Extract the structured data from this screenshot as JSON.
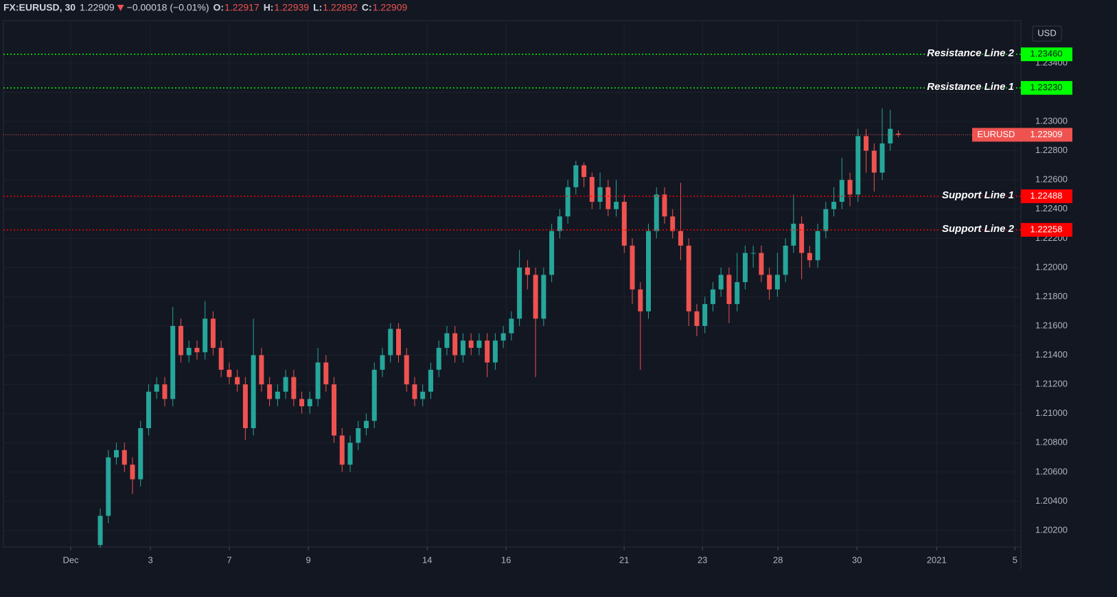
{
  "chart_data": {
    "type": "candlestick",
    "header": {
      "symbol": "FX:EURUSD, 30",
      "change": "−0.00018 (−0.01%)",
      "ohlc_labels": [
        "O:",
        "H:",
        "L:",
        "C:"
      ]
    },
    "currency": "USD",
    "symbol_tag": "EURUSD",
    "up_color": "#26a69a",
    "down_color": "#ef5350",
    "grid": true,
    "xlim": [
      -12.01,
      114.2
    ],
    "xticks": [
      {
        "value": -3.66,
        "label": "Dec"
      },
      {
        "value": 6.22,
        "label": "3"
      },
      {
        "value": 16.01,
        "label": "7"
      },
      {
        "value": 25.81,
        "label": "9"
      },
      {
        "value": 40.55,
        "label": "14"
      },
      {
        "value": 50.34,
        "label": "16"
      },
      {
        "value": 64.99,
        "label": "21"
      },
      {
        "value": 74.7,
        "label": "23"
      },
      {
        "value": 84.07,
        "label": "28"
      },
      {
        "value": 93.87,
        "label": "30"
      },
      {
        "value": 103.75,
        "label": "2021"
      },
      {
        "value": 113.46,
        "label": "5"
      }
    ],
    "ylim": [
      1.20087,
      1.23691
    ],
    "yticks": [
      {
        "value": 1.202,
        "label": "1.20200"
      },
      {
        "value": 1.204,
        "label": "1.20400"
      },
      {
        "value": 1.206,
        "label": "1.20600"
      },
      {
        "value": 1.208,
        "label": "1.20800"
      },
      {
        "value": 1.21,
        "label": "1.21000"
      },
      {
        "value": 1.212,
        "label": "1.21200"
      },
      {
        "value": 1.214,
        "label": "1.21400"
      },
      {
        "value": 1.216,
        "label": "1.21600"
      },
      {
        "value": 1.218,
        "label": "1.21800"
      },
      {
        "value": 1.22,
        "label": "1.22000"
      },
      {
        "value": 1.222,
        "label": "1.22200"
      },
      {
        "value": 1.224,
        "label": "1.22400"
      },
      {
        "value": 1.226,
        "label": "1.22600"
      },
      {
        "value": 1.228,
        "label": "1.22800"
      },
      {
        "value": 1.23,
        "label": "1.23000"
      },
      {
        "value": 1.232,
        "label": "1.23200"
      },
      {
        "value": 1.234,
        "label": "1.23400"
      }
    ],
    "open": [
      1.201,
      1.203,
      1.207,
      1.2075,
      1.2065,
      1.2055,
      1.209,
      1.2115,
      1.212,
      1.211,
      1.216,
      1.214,
      1.2145,
      1.2142,
      1.2165,
      1.2145,
      1.213,
      1.2125,
      1.212,
      1.209,
      1.214,
      1.212,
      1.211,
      1.2115,
      1.2125,
      1.211,
      1.2105,
      1.211,
      1.2135,
      1.212,
      1.2085,
      1.2065,
      1.208,
      1.209,
      1.2095,
      1.213,
      1.214,
      1.2158,
      1.214,
      1.212,
      1.211,
      1.2115,
      1.213,
      1.2145,
      1.2155,
      1.214,
      1.215,
      1.2145,
      1.215,
      1.2135,
      1.215,
      1.2155,
      1.2165,
      1.22,
      1.2195,
      1.2165,
      1.2195,
      1.2225,
      1.2235,
      1.2255,
      1.227,
      1.2262,
      1.2245,
      1.2255,
      1.224,
      1.2245,
      1.2215,
      1.2185,
      1.217,
      1.2225,
      1.225,
      1.2235,
      1.2225,
      1.2215,
      1.217,
      1.216,
      1.2175,
      1.2185,
      1.2195,
      1.2175,
      1.219,
      1.221,
      1.221,
      1.2195,
      1.2185,
      1.2195,
      1.2215,
      1.223,
      1.221,
      1.2205,
      1.2225,
      1.224,
      1.2245,
      1.226,
      1.225,
      1.229,
      1.228,
      1.2265,
      1.2285,
      1.22917
    ],
    "high": [
      1.2035,
      1.2075,
      1.208,
      1.208,
      1.207,
      1.2095,
      1.212,
      1.2125,
      1.2125,
      1.2173,
      1.2165,
      1.215,
      1.215,
      1.2177,
      1.217,
      1.215,
      1.2135,
      1.213,
      1.2125,
      1.2165,
      1.2145,
      1.2125,
      1.212,
      1.213,
      1.213,
      1.2115,
      1.2115,
      1.2145,
      1.214,
      1.2125,
      1.209,
      1.2085,
      1.2095,
      1.21,
      1.2135,
      1.2145,
      1.2162,
      1.2162,
      1.2145,
      1.2125,
      1.212,
      1.2135,
      1.215,
      1.216,
      1.216,
      1.2155,
      1.2155,
      1.2155,
      1.2155,
      1.2155,
      1.216,
      1.217,
      1.2212,
      1.2205,
      1.22,
      1.22,
      1.223,
      1.224,
      1.226,
      1.2273,
      1.2272,
      1.2265,
      1.2265,
      1.226,
      1.226,
      1.225,
      1.222,
      1.219,
      1.223,
      1.2255,
      1.2255,
      1.224,
      1.2258,
      1.222,
      1.2175,
      1.218,
      1.219,
      1.22,
      1.22,
      1.221,
      1.2215,
      1.2215,
      1.2215,
      1.22,
      1.221,
      1.222,
      1.225,
      1.2235,
      1.2215,
      1.223,
      1.2245,
      1.2255,
      1.2275,
      1.2265,
      1.2295,
      1.2295,
      1.2285,
      1.2309,
      1.2308,
      1.22939
    ],
    "low": [
      1.2008,
      1.2025,
      1.2065,
      1.206,
      1.2045,
      1.205,
      1.2085,
      1.211,
      1.2105,
      1.2105,
      1.2135,
      1.2135,
      1.2137,
      1.2137,
      1.214,
      1.2125,
      1.212,
      1.2115,
      1.2082,
      1.2085,
      1.2115,
      1.2105,
      1.2105,
      1.211,
      1.2105,
      1.21,
      1.21,
      1.2105,
      1.2115,
      1.208,
      1.206,
      1.206,
      1.2075,
      1.2085,
      1.209,
      1.2125,
      1.2135,
      1.2135,
      1.2115,
      1.2105,
      1.2105,
      1.211,
      1.2125,
      1.214,
      1.2135,
      1.2135,
      1.214,
      1.214,
      1.2125,
      1.213,
      1.2145,
      1.215,
      1.216,
      1.2185,
      1.2125,
      1.216,
      1.219,
      1.222,
      1.223,
      1.225,
      1.2255,
      1.224,
      1.224,
      1.2235,
      1.2235,
      1.221,
      1.2175,
      1.213,
      1.2165,
      1.222,
      1.223,
      1.222,
      1.2205,
      1.216,
      1.2153,
      1.2155,
      1.217,
      1.218,
      1.2162,
      1.217,
      1.2185,
      1.22,
      1.219,
      1.2178,
      1.218,
      1.219,
      1.221,
      1.2192,
      1.22,
      1.22,
      1.222,
      1.2235,
      1.224,
      1.2242,
      1.2245,
      1.2265,
      1.2252,
      1.226,
      1.228,
      1.22892
    ],
    "close": [
      1.203,
      1.207,
      1.2075,
      1.2065,
      1.2055,
      1.209,
      1.2115,
      1.212,
      1.211,
      1.216,
      1.214,
      1.2145,
      1.2142,
      1.2165,
      1.2145,
      1.213,
      1.2125,
      1.212,
      1.209,
      1.214,
      1.212,
      1.211,
      1.2115,
      1.2125,
      1.211,
      1.2105,
      1.211,
      1.2135,
      1.212,
      1.2085,
      1.2065,
      1.208,
      1.209,
      1.2095,
      1.213,
      1.214,
      1.2158,
      1.214,
      1.212,
      1.211,
      1.2115,
      1.213,
      1.2145,
      1.2155,
      1.214,
      1.215,
      1.2145,
      1.215,
      1.2135,
      1.215,
      1.2155,
      1.2165,
      1.22,
      1.2195,
      1.2165,
      1.2195,
      1.2225,
      1.2235,
      1.2255,
      1.227,
      1.2262,
      1.2245,
      1.2255,
      1.224,
      1.2245,
      1.2215,
      1.2185,
      1.217,
      1.2225,
      1.225,
      1.2235,
      1.2225,
      1.2215,
      1.217,
      1.216,
      1.2175,
      1.2185,
      1.2195,
      1.2175,
      1.219,
      1.221,
      1.221,
      1.2195,
      1.2185,
      1.2195,
      1.2215,
      1.223,
      1.221,
      1.2205,
      1.2225,
      1.224,
      1.2245,
      1.226,
      1.225,
      1.229,
      1.228,
      1.2265,
      1.2285,
      1.2295,
      1.22909
    ],
    "levels": {
      "names": [
        "Resistance Line 2",
        "Resistance Line 1",
        "Support Line 1",
        "Support Line 2"
      ],
      "values": [
        1.2346,
        1.2323,
        1.22488,
        1.22258
      ],
      "value_labels": [
        "1.23460",
        "1.23230",
        "1.22488",
        "1.22258"
      ],
      "colors": [
        "#00ff00",
        "#00ff00",
        "#ff0000",
        "#ff0000"
      ],
      "text_colors": [
        "#131722",
        "#131722",
        "#ffffff",
        "#ffffff"
      ]
    }
  }
}
